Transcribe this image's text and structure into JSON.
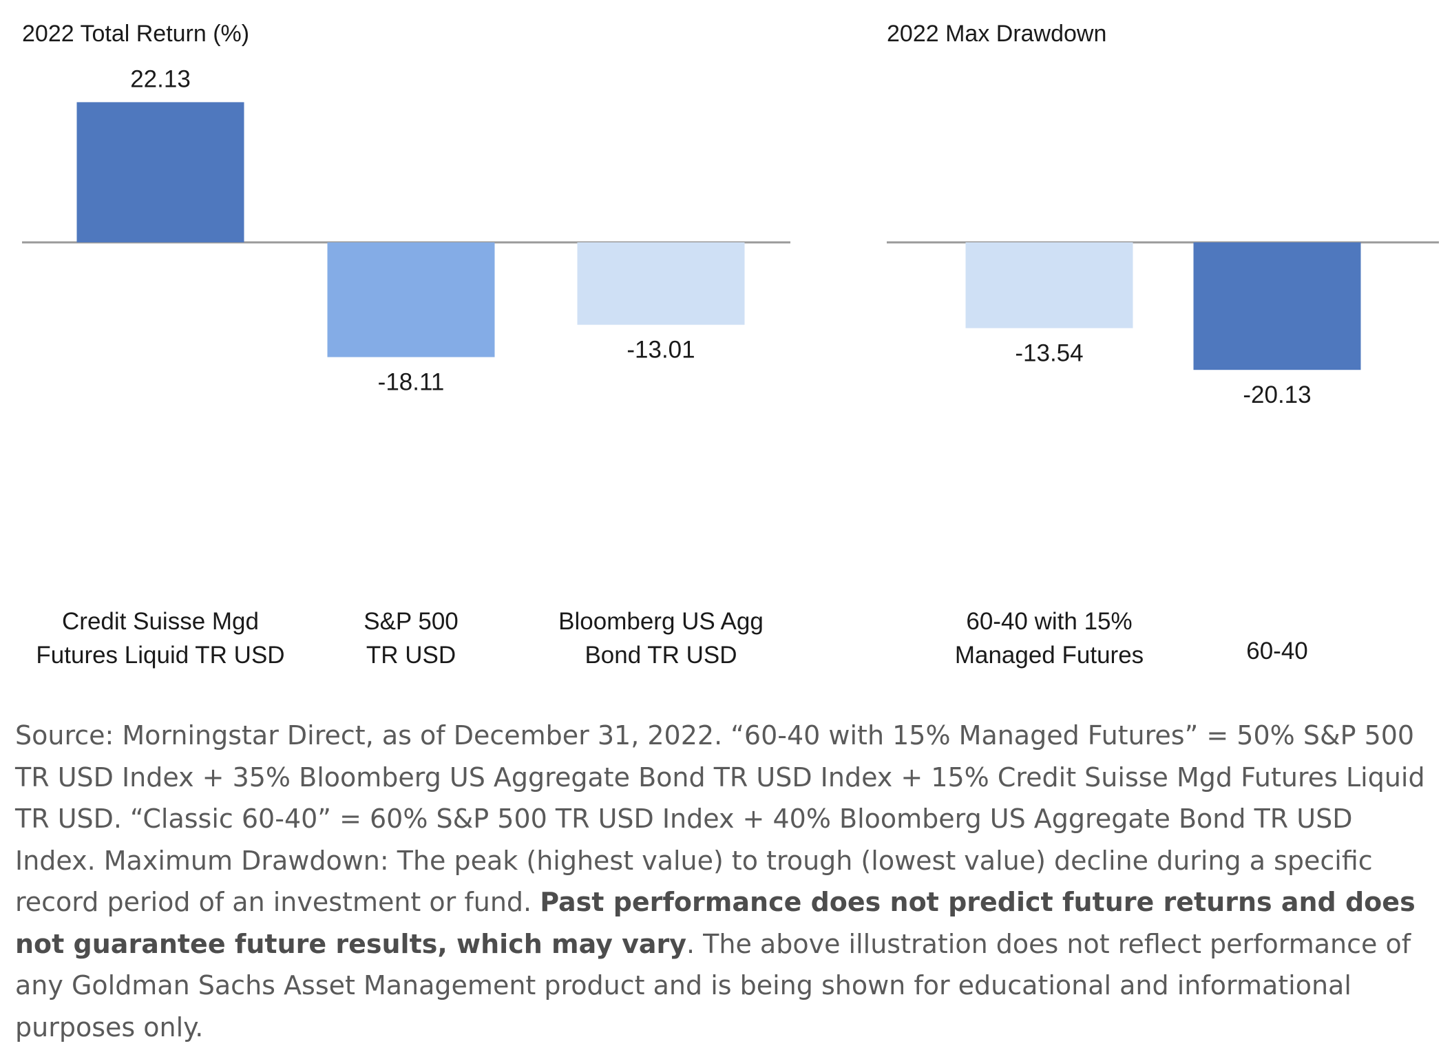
{
  "chart_data": [
    {
      "type": "bar",
      "title": "2022 Total Return (%)",
      "categories": [
        [
          "Credit Suisse Mgd",
          "Futures Liquid TR USD"
        ],
        [
          "S&P 500",
          "TR USD"
        ],
        [
          "Bloomberg US Agg",
          "Bond TR USD"
        ]
      ],
      "values": [
        22.13,
        -18.11,
        -13.01
      ],
      "value_labels": [
        "22.13",
        "-18.11",
        "-13.01"
      ],
      "colors": [
        "#4f78be",
        "#84ace6",
        "#cfe0f5"
      ],
      "xlabel": "",
      "ylabel": "",
      "ylim": [
        -20.13,
        22.13
      ],
      "grid": false
    },
    {
      "type": "bar",
      "title": "2022 Max Drawdown",
      "categories": [
        [
          "60-40 with 15%",
          "Managed Futures"
        ],
        [
          "60-40"
        ]
      ],
      "values": [
        -13.54,
        -20.13
      ],
      "value_labels": [
        "-13.54",
        "-20.13"
      ],
      "colors": [
        "#cfe0f5",
        "#4f78be"
      ],
      "xlabel": "",
      "ylabel": "",
      "ylim": [
        -20.13,
        22.13
      ],
      "grid": false
    }
  ],
  "footnote": {
    "part1": "Source: Morningstar Direct, as of December 31, 2022. “60-40 with 15% Managed Futures” = 50% S&P 500 TR USD Index + 35% Bloomberg US Aggregate Bond TR USD Index + 15% Credit Suisse Mgd Futures Liquid TR USD. “Classic 60-40” = 60% S&P 500 TR USD Index + 40% Bloomberg US Aggregate Bond TR USD Index. Maximum Drawdown: The peak (highest value) to trough (lowest value) decline during a specific record period of an investment or fund. ",
    "bold": "Past performance does not predict future returns and does not guarantee future results, which may vary",
    "part2": ". The above illustration does not reflect performance of any Goldman Sachs Asset Management product and is being shown for educational and informational purposes only."
  }
}
